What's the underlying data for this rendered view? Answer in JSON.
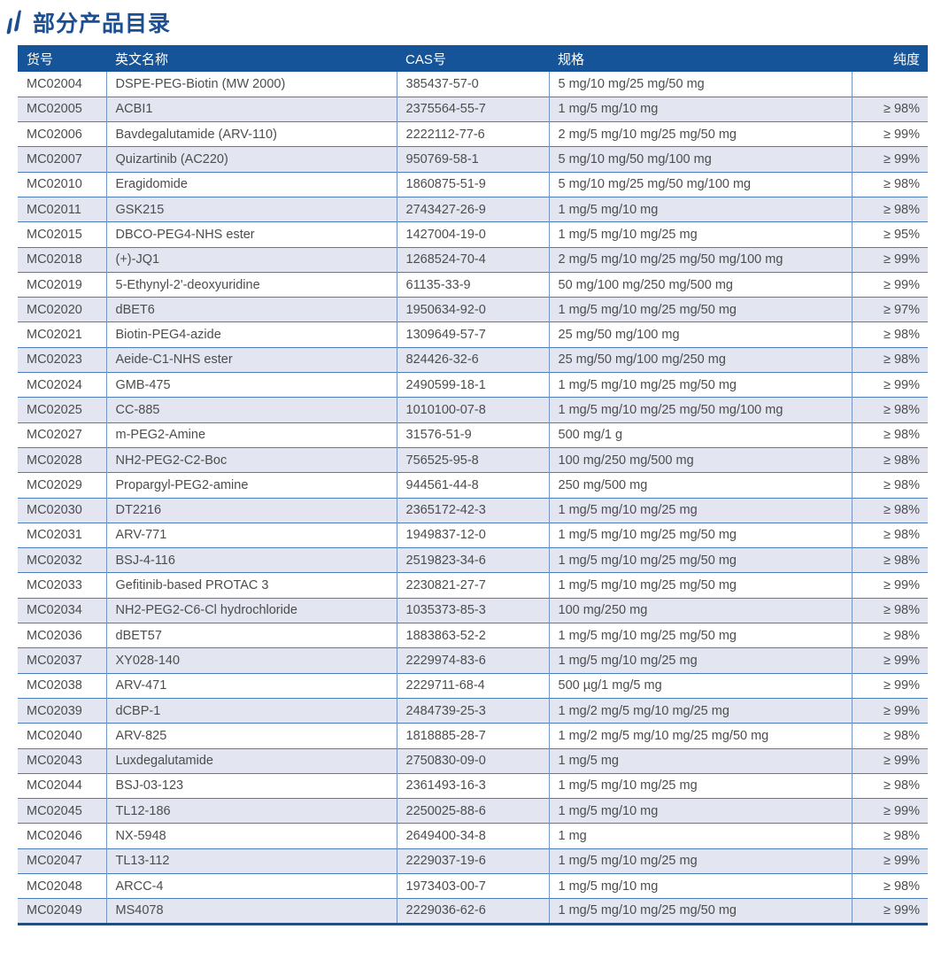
{
  "page": {
    "title": "部分产品目录",
    "accent_color": "#155498",
    "stripe_color": "#e3e5f1",
    "heading_color": "#1b4e93"
  },
  "table": {
    "columns": [
      {
        "key": "sku",
        "label": "货号"
      },
      {
        "key": "name",
        "label": "英文名称"
      },
      {
        "key": "cas",
        "label": "CAS号"
      },
      {
        "key": "spec",
        "label": "规格"
      },
      {
        "key": "purity",
        "label": "纯度"
      }
    ],
    "rows": [
      {
        "sku": "MC02004",
        "name": "DSPE-PEG-Biotin (MW 2000)",
        "cas": "385437-57-0",
        "spec": "5 mg/10 mg/25 mg/50 mg",
        "purity": ""
      },
      {
        "sku": "MC02005",
        "name": "ACBI1",
        "cas": "2375564-55-7",
        "spec": "1 mg/5 mg/10 mg",
        "purity": "≥ 98%"
      },
      {
        "sku": "MC02006",
        "name": "Bavdegalutamide (ARV-110)",
        "cas": "2222112-77-6",
        "spec": "2 mg/5 mg/10 mg/25 mg/50 mg",
        "purity": "≥ 99%"
      },
      {
        "sku": "MC02007",
        "name": "Quizartinib (AC220)",
        "cas": "950769-58-1",
        "spec": "5 mg/10 mg/50 mg/100 mg",
        "purity": "≥ 99%"
      },
      {
        "sku": "MC02010",
        "name": "Eragidomide",
        "cas": "1860875-51-9",
        "spec": "5 mg/10 mg/25 mg/50 mg/100 mg",
        "purity": "≥ 98%"
      },
      {
        "sku": "MC02011",
        "name": "GSK215",
        "cas": "2743427-26-9",
        "spec": "1 mg/5 mg/10 mg",
        "purity": "≥ 98%"
      },
      {
        "sku": "MC02015",
        "name": "DBCO-PEG4-NHS ester",
        "cas": "1427004-19-0",
        "spec": "1 mg/5 mg/10 mg/25 mg",
        "purity": "≥ 95%"
      },
      {
        "sku": "MC02018",
        "name": "(+)-JQ1",
        "cas": "1268524-70-4",
        "spec": "2 mg/5 mg/10 mg/25 mg/50 mg/100 mg",
        "purity": "≥ 99%"
      },
      {
        "sku": "MC02019",
        "name": "5-Ethynyl-2'-deoxyuridine",
        "cas": "61135-33-9",
        "spec": "50 mg/100 mg/250 mg/500 mg",
        "purity": "≥ 99%"
      },
      {
        "sku": "MC02020",
        "name": "dBET6",
        "cas": "1950634-92-0",
        "spec": "1 mg/5 mg/10 mg/25 mg/50 mg",
        "purity": "≥ 97%"
      },
      {
        "sku": "MC02021",
        "name": "Biotin-PEG4-azide",
        "cas": "1309649-57-7",
        "spec": "25 mg/50 mg/100 mg",
        "purity": "≥ 98%"
      },
      {
        "sku": "MC02023",
        "name": "Aeide-C1-NHS ester",
        "cas": "824426-32-6",
        "spec": "25 mg/50 mg/100 mg/250 mg",
        "purity": "≥ 98%"
      },
      {
        "sku": "MC02024",
        "name": "GMB-475",
        "cas": "2490599-18-1",
        "spec": "1 mg/5 mg/10 mg/25 mg/50 mg",
        "purity": "≥ 99%"
      },
      {
        "sku": "MC02025",
        "name": "CC-885",
        "cas": "1010100-07-8",
        "spec": "1 mg/5 mg/10 mg/25 mg/50 mg/100 mg",
        "purity": "≥ 98%"
      },
      {
        "sku": "MC02027",
        "name": "m-PEG2-Amine",
        "cas": "31576-51-9",
        "spec": "500 mg/1 g",
        "purity": "≥ 98%"
      },
      {
        "sku": "MC02028",
        "name": "NH2-PEG2-C2-Boc",
        "cas": "756525-95-8",
        "spec": "100 mg/250 mg/500 mg",
        "purity": "≥ 98%"
      },
      {
        "sku": "MC02029",
        "name": "Propargyl-PEG2-amine",
        "cas": "944561-44-8",
        "spec": "250 mg/500 mg",
        "purity": "≥ 98%"
      },
      {
        "sku": "MC02030",
        "name": "DT2216",
        "cas": "2365172-42-3",
        "spec": "1 mg/5 mg/10 mg/25 mg",
        "purity": "≥ 98%"
      },
      {
        "sku": "MC02031",
        "name": "ARV-771",
        "cas": "1949837-12-0",
        "spec": "1 mg/5 mg/10 mg/25 mg/50 mg",
        "purity": "≥ 98%"
      },
      {
        "sku": "MC02032",
        "name": "BSJ-4-116",
        "cas": "2519823-34-6",
        "spec": "1 mg/5 mg/10 mg/25 mg/50 mg",
        "purity": "≥ 98%"
      },
      {
        "sku": "MC02033",
        "name": "Gefitinib-based PROTAC 3",
        "cas": "2230821-27-7",
        "spec": "1 mg/5 mg/10 mg/25 mg/50 mg",
        "purity": "≥ 99%"
      },
      {
        "sku": "MC02034",
        "name": "NH2-PEG2-C6-Cl hydrochloride",
        "cas": "1035373-85-3",
        "spec": "100 mg/250 mg",
        "purity": "≥ 98%"
      },
      {
        "sku": "MC02036",
        "name": "dBET57",
        "cas": "1883863-52-2",
        "spec": "1 mg/5 mg/10 mg/25 mg/50 mg",
        "purity": "≥ 98%"
      },
      {
        "sku": "MC02037",
        "name": "XY028-140",
        "cas": "2229974-83-6",
        "spec": "1 mg/5 mg/10 mg/25 mg",
        "purity": "≥ 99%"
      },
      {
        "sku": "MC02038",
        "name": "ARV-471",
        "cas": "2229711-68-4",
        "spec": "500 µg/1 mg/5 mg",
        "purity": "≥ 99%"
      },
      {
        "sku": "MC02039",
        "name": "dCBP-1",
        "cas": "2484739-25-3",
        "spec": "1 mg/2 mg/5 mg/10 mg/25 mg",
        "purity": "≥ 99%"
      },
      {
        "sku": "MC02040",
        "name": "ARV-825",
        "cas": "1818885-28-7",
        "spec": "1 mg/2 mg/5 mg/10 mg/25 mg/50 mg",
        "purity": "≥ 98%"
      },
      {
        "sku": "MC02043",
        "name": "Luxdegalutamide",
        "cas": "2750830-09-0",
        "spec": "1 mg/5 mg",
        "purity": "≥ 99%"
      },
      {
        "sku": "MC02044",
        "name": "BSJ-03-123",
        "cas": "2361493-16-3",
        "spec": "1 mg/5 mg/10 mg/25 mg",
        "purity": "≥ 98%"
      },
      {
        "sku": "MC02045",
        "name": "TL12-186",
        "cas": "2250025-88-6",
        "spec": "1 mg/5 mg/10 mg",
        "purity": "≥ 99%"
      },
      {
        "sku": "MC02046",
        "name": "NX-5948",
        "cas": "2649400-34-8",
        "spec": "1 mg",
        "purity": "≥ 98%"
      },
      {
        "sku": "MC02047",
        "name": "TL13-112",
        "cas": "2229037-19-6",
        "spec": "1 mg/5 mg/10 mg/25 mg",
        "purity": "≥ 99%"
      },
      {
        "sku": "MC02048",
        "name": "ARCC-4",
        "cas": "1973403-00-7",
        "spec": "1 mg/5 mg/10 mg",
        "purity": "≥ 98%"
      },
      {
        "sku": "MC02049",
        "name": "MS4078",
        "cas": "2229036-62-6",
        "spec": "1 mg/5 mg/10 mg/25 mg/50 mg",
        "purity": "≥ 99%"
      }
    ]
  }
}
